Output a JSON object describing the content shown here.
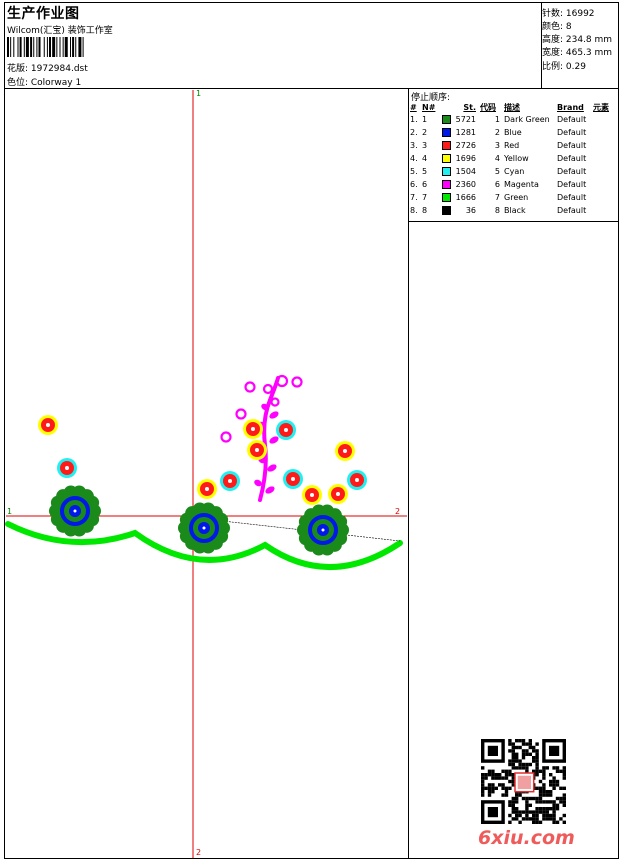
{
  "header": {
    "title": "生产作业图",
    "company": "Wilcom(汇宝) 装饰工作室",
    "design": "花版: 1972984.dst",
    "colorway": "色位: Colorway 1"
  },
  "stats": {
    "stitches": "针数: 16992",
    "colors": "颜色: 8",
    "height": "高度: 234.8 mm",
    "width": "宽度: 465.3 mm",
    "scale": "比例: 0.29"
  },
  "stop_sequence": {
    "title": "停止顺序:",
    "columns": [
      "#",
      "N#",
      "St.",
      "代码",
      "描述",
      "Brand",
      "元素"
    ],
    "rows": [
      {
        "idx": "1.",
        "n": "1",
        "color": "#1a8a1a",
        "stitches": "5721",
        "code": "1",
        "desc": "Dark Green",
        "brand": "Default"
      },
      {
        "idx": "2.",
        "n": "2",
        "color": "#0018e8",
        "stitches": "1281",
        "code": "2",
        "desc": "Blue",
        "brand": "Default"
      },
      {
        "idx": "3.",
        "n": "3",
        "color": "#ff1a1a",
        "stitches": "2726",
        "code": "3",
        "desc": "Red",
        "brand": "Default"
      },
      {
        "idx": "4.",
        "n": "4",
        "color": "#ffff00",
        "stitches": "1696",
        "code": "4",
        "desc": "Yellow",
        "brand": "Default"
      },
      {
        "idx": "5.",
        "n": "5",
        "color": "#22f0f0",
        "stitches": "1504",
        "code": "5",
        "desc": "Cyan",
        "brand": "Default"
      },
      {
        "idx": "6.",
        "n": "6",
        "color": "#ff00ff",
        "stitches": "2360",
        "code": "6",
        "desc": "Magenta",
        "brand": "Default"
      },
      {
        "idx": "7.",
        "n": "7",
        "color": "#00e800",
        "stitches": "1666",
        "code": "7",
        "desc": "Green",
        "brand": "Default"
      },
      {
        "idx": "8.",
        "n": "8",
        "color": "#000000",
        "stitches": "36",
        "code": "8",
        "desc": "Black",
        "brand": "Default"
      }
    ]
  },
  "axis_labels": {
    "top": "1",
    "left": "1",
    "right": "2",
    "bottom": "2"
  },
  "watermark": "6xiu.com"
}
